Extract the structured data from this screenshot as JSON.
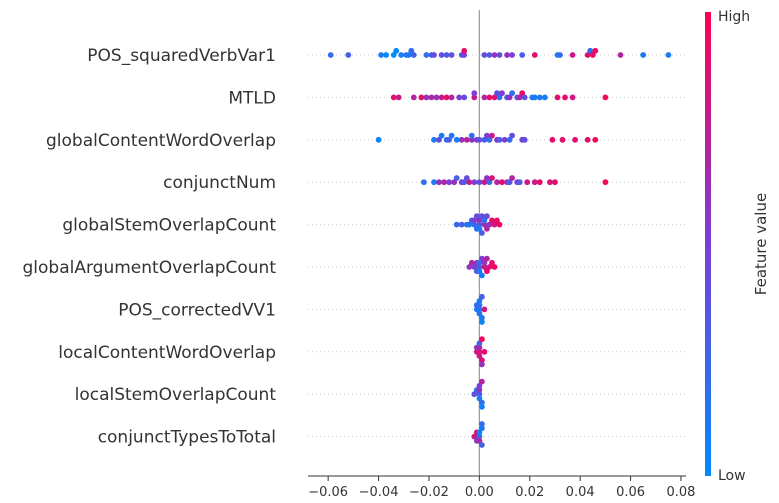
{
  "chart_data": {
    "type": "scatter",
    "subtype": "beeswarm",
    "xlim": [
      -0.068,
      0.082
    ],
    "xticks": [
      -0.06,
      -0.04,
      -0.02,
      0.0,
      0.02,
      0.04,
      0.06,
      0.08
    ],
    "xtick_labels": [
      "−0.06",
      "−0.04",
      "−0.02",
      "0.00",
      "0.02",
      "0.04",
      "0.06",
      "0.08"
    ],
    "grid": false,
    "colorbar": {
      "high_label": "High",
      "low_label": "Low",
      "title": "Feature value",
      "low_color": "#008bfb",
      "mid_color": "#7b3fd6",
      "high_color": "#ff0052"
    },
    "features": [
      {
        "name": "POS_squaredVerbVar1",
        "points": [
          [
            -0.059,
            0.2
          ],
          [
            -0.052,
            0.3
          ],
          [
            -0.039,
            0.1
          ],
          [
            -0.037,
            0.0
          ],
          [
            -0.034,
            0.0
          ],
          [
            -0.033,
            0.0
          ],
          [
            -0.031,
            0.1
          ],
          [
            -0.028,
            0.1
          ],
          [
            -0.027,
            0.2
          ],
          [
            -0.026,
            0.3
          ],
          [
            -0.021,
            0.2
          ],
          [
            -0.019,
            0.3
          ],
          [
            -0.015,
            0.4
          ],
          [
            -0.013,
            0.3
          ],
          [
            -0.011,
            0.4
          ],
          [
            -0.007,
            0.3
          ],
          [
            -0.006,
            0.5
          ],
          [
            -0.006,
            0.9
          ],
          [
            0.002,
            0.4
          ],
          [
            0.006,
            0.6
          ],
          [
            0.008,
            0.4
          ],
          [
            0.011,
            0.6
          ],
          [
            0.013,
            0.5
          ],
          [
            0.017,
            0.3
          ],
          [
            0.022,
            0.9
          ],
          [
            0.031,
            0.1
          ],
          [
            0.032,
            0.2
          ],
          [
            0.037,
            0.8
          ],
          [
            0.043,
            0.9
          ],
          [
            0.044,
            0.2
          ],
          [
            0.045,
            0.9
          ],
          [
            0.046,
            0.95
          ],
          [
            0.056,
            0.7
          ],
          [
            0.065,
            0.1
          ],
          [
            0.075,
            0.1
          ],
          [
            -0.029,
            0.2
          ],
          [
            -0.018,
            0.4
          ],
          [
            0.004,
            0.3
          ]
        ]
      },
      {
        "name": "MTLD",
        "points": [
          [
            -0.034,
            0.9
          ],
          [
            -0.032,
            0.8
          ],
          [
            -0.026,
            0.7
          ],
          [
            -0.023,
            0.9
          ],
          [
            -0.021,
            0.6
          ],
          [
            -0.019,
            0.7
          ],
          [
            -0.017,
            0.6
          ],
          [
            -0.015,
            0.8
          ],
          [
            -0.013,
            0.9
          ],
          [
            -0.011,
            0.7
          ],
          [
            -0.008,
            0.5
          ],
          [
            -0.006,
            0.4
          ],
          [
            -0.002,
            0.8
          ],
          [
            0.002,
            0.7
          ],
          [
            0.004,
            0.9
          ],
          [
            0.006,
            0.9
          ],
          [
            0.007,
            0.4
          ],
          [
            0.009,
            0.5
          ],
          [
            0.011,
            0.3
          ],
          [
            0.013,
            0.2
          ],
          [
            0.015,
            0.4
          ],
          [
            0.016,
            0.7
          ],
          [
            0.018,
            0.4
          ],
          [
            0.017,
            0.9
          ],
          [
            0.021,
            0.1
          ],
          [
            0.022,
            0.1
          ],
          [
            0.024,
            0.1
          ],
          [
            0.026,
            0.1
          ],
          [
            0.031,
            0.9
          ],
          [
            0.034,
            0.9
          ],
          [
            0.037,
            0.8
          ],
          [
            0.05,
            0.95
          ],
          [
            0.008,
            0.2
          ],
          [
            -0.002,
            0.5
          ],
          [
            0.012,
            0.6
          ]
        ]
      },
      {
        "name": "globalContentWordOverlap",
        "points": [
          [
            -0.04,
            0.05
          ],
          [
            -0.018,
            0.1
          ],
          [
            -0.015,
            0.1
          ],
          [
            -0.013,
            0.2
          ],
          [
            -0.011,
            0.15
          ],
          [
            -0.009,
            0.1
          ],
          [
            -0.007,
            0.6
          ],
          [
            -0.005,
            0.7
          ],
          [
            -0.003,
            0.6
          ],
          [
            -0.001,
            0.5
          ],
          [
            0.002,
            0.3
          ],
          [
            0.003,
            0.5
          ],
          [
            0.004,
            0.2
          ],
          [
            0.005,
            0.8
          ],
          [
            0.007,
            0.6
          ],
          [
            0.01,
            0.5
          ],
          [
            0.012,
            0.2
          ],
          [
            0.017,
            0.5
          ],
          [
            0.018,
            0.4
          ],
          [
            0.029,
            0.9
          ],
          [
            0.033,
            0.9
          ],
          [
            0.038,
            0.9
          ],
          [
            0.043,
            0.9
          ],
          [
            0.046,
            0.95
          ],
          [
            -0.016,
            0.4
          ],
          [
            -0.012,
            0.3
          ],
          [
            0.0,
            0.4
          ],
          [
            0.008,
            0.3
          ],
          [
            -0.003,
            0.2
          ],
          [
            0.013,
            0.4
          ]
        ]
      },
      {
        "name": "conjunctNum",
        "points": [
          [
            -0.022,
            0.2
          ],
          [
            -0.018,
            0.1
          ],
          [
            -0.016,
            0.6
          ],
          [
            -0.014,
            0.7
          ],
          [
            -0.012,
            0.5
          ],
          [
            -0.01,
            0.6
          ],
          [
            -0.009,
            0.3
          ],
          [
            -0.007,
            0.5
          ],
          [
            -0.005,
            0.4
          ],
          [
            -0.004,
            0.8
          ],
          [
            -0.002,
            0.5
          ],
          [
            0.0,
            0.4
          ],
          [
            0.002,
            0.8
          ],
          [
            0.003,
            0.6
          ],
          [
            0.005,
            0.85
          ],
          [
            0.007,
            0.7
          ],
          [
            0.009,
            0.9
          ],
          [
            0.011,
            0.6
          ],
          [
            0.015,
            0.5
          ],
          [
            0.016,
            0.3
          ],
          [
            0.019,
            0.8
          ],
          [
            0.022,
            0.8
          ],
          [
            0.024,
            0.9
          ],
          [
            0.028,
            0.85
          ],
          [
            0.03,
            0.9
          ],
          [
            0.05,
            0.95
          ],
          [
            0.013,
            0.7
          ],
          [
            -0.006,
            0.3
          ],
          [
            0.004,
            0.2
          ],
          [
            0.012,
            0.3
          ]
        ]
      },
      {
        "name": "globalStemOverlapCount",
        "points": [
          [
            -0.009,
            0.2
          ],
          [
            -0.007,
            0.3
          ],
          [
            -0.005,
            0.2
          ],
          [
            -0.004,
            0.1
          ],
          [
            -0.003,
            0.3
          ],
          [
            -0.002,
            0.2
          ],
          [
            -0.001,
            0.15
          ],
          [
            0.0,
            0.25
          ],
          [
            0.001,
            0.4
          ],
          [
            0.002,
            0.6
          ],
          [
            0.003,
            0.7
          ],
          [
            0.004,
            0.6
          ],
          [
            0.005,
            0.9
          ],
          [
            0.006,
            0.85
          ],
          [
            0.007,
            0.9
          ],
          [
            0.008,
            0.95
          ],
          [
            0.0,
            0.6
          ],
          [
            -0.001,
            0.4
          ],
          [
            0.001,
            0.3
          ],
          [
            0.002,
            0.2
          ],
          [
            -0.002,
            0.5
          ],
          [
            0.003,
            0.4
          ],
          [
            0.0,
            0.1
          ]
        ]
      },
      {
        "name": "globalArgumentOverlapCount",
        "points": [
          [
            -0.004,
            0.6
          ],
          [
            -0.003,
            0.7
          ],
          [
            -0.002,
            0.5
          ],
          [
            -0.001,
            0.6
          ],
          [
            0.0,
            0.3
          ],
          [
            0.001,
            0.5
          ],
          [
            0.002,
            0.8
          ],
          [
            0.003,
            0.9
          ],
          [
            0.004,
            0.85
          ],
          [
            0.005,
            0.9
          ],
          [
            0.006,
            0.95
          ],
          [
            0.0,
            0.2
          ],
          [
            0.001,
            0.1
          ],
          [
            -0.001,
            0.4
          ],
          [
            0.002,
            0.6
          ],
          [
            0.003,
            0.7
          ],
          [
            0.0,
            0.1
          ]
        ]
      },
      {
        "name": "POS_correctedVV1",
        "points": [
          [
            -0.001,
            0.1
          ],
          [
            0.0,
            0.05
          ],
          [
            0.001,
            0.1
          ],
          [
            0.0,
            0.2
          ],
          [
            0.0,
            0.15
          ],
          [
            0.001,
            0.3
          ],
          [
            -0.001,
            0.2
          ],
          [
            0.0,
            0.1
          ],
          [
            0.002,
            0.8
          ],
          [
            0.001,
            0.05
          ]
        ]
      },
      {
        "name": "localContentWordOverlap",
        "points": [
          [
            -0.001,
            0.8
          ],
          [
            0.0,
            0.9
          ],
          [
            0.001,
            0.85
          ],
          [
            0.0,
            0.7
          ],
          [
            0.001,
            0.95
          ],
          [
            -0.001,
            0.6
          ],
          [
            0.0,
            0.8
          ],
          [
            0.002,
            0.9
          ],
          [
            0.0,
            0.3
          ],
          [
            0.001,
            0.6
          ]
        ]
      },
      {
        "name": "localStemOverlapCount",
        "points": [
          [
            -0.001,
            0.2
          ],
          [
            0.0,
            0.3
          ],
          [
            0.001,
            0.2
          ],
          [
            0.0,
            0.6
          ],
          [
            0.001,
            0.7
          ],
          [
            -0.002,
            0.4
          ],
          [
            0.0,
            0.1
          ],
          [
            0.001,
            0.05
          ],
          [
            0.0,
            0.5
          ]
        ]
      },
      {
        "name": "conjunctTypesToTotal",
        "points": [
          [
            -0.002,
            0.8
          ],
          [
            -0.001,
            0.9
          ],
          [
            0.0,
            0.2
          ],
          [
            0.001,
            0.1
          ],
          [
            0.0,
            0.05
          ],
          [
            0.001,
            0.3
          ],
          [
            -0.001,
            0.5
          ],
          [
            0.0,
            0.7
          ],
          [
            0.001,
            0.2
          ]
        ]
      }
    ]
  }
}
